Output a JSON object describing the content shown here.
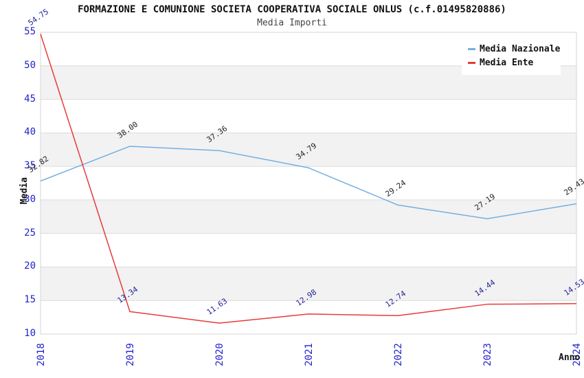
{
  "chart_data": {
    "type": "line",
    "title": "FORMAZIONE E COMUNIONE SOCIETA COOPERATIVA SOCIALE ONLUS (c.f.01495820886)",
    "subtitle": "Media Importi",
    "xlabel": "Anno",
    "ylabel": "Media",
    "categories": [
      "2018",
      "2019",
      "2020",
      "2021",
      "2022",
      "2023",
      "2024"
    ],
    "series": [
      {
        "name": "Media Nazionale",
        "color": "#74afe0",
        "label_color": "#222222",
        "values": [
          32.82,
          38.0,
          37.36,
          34.79,
          29.24,
          27.19,
          29.43
        ]
      },
      {
        "name": "Media Ente",
        "color": "#e63a3a",
        "label_color": "#222299",
        "values": [
          54.75,
          13.34,
          11.63,
          12.98,
          12.74,
          14.44,
          14.53
        ]
      }
    ],
    "ylim": [
      10,
      55
    ],
    "ytick_step": 5,
    "grid": true,
    "legend_position": "top-right",
    "value_label_decimals": 2,
    "colors": {
      "tick_text": "#2222cc",
      "band": "#f2f2f2",
      "gridline": "#dcdcdc",
      "plot_border": "#d6d6d6",
      "background": "#ffffff"
    }
  }
}
